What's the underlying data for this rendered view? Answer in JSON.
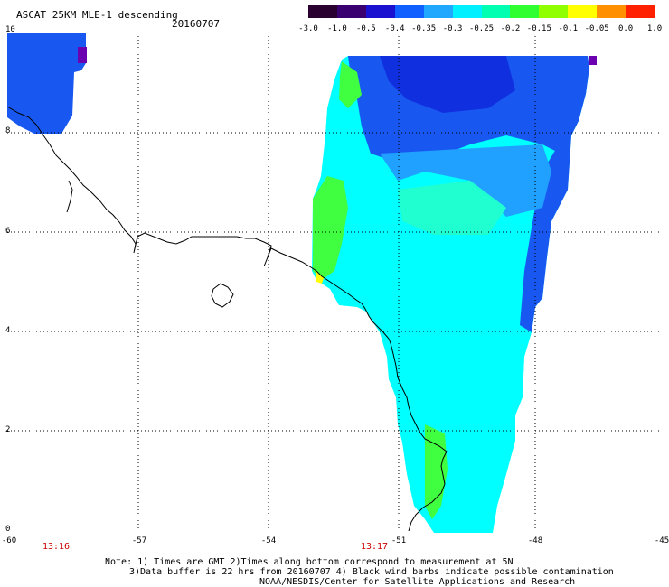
{
  "header": {
    "title": "ASCAT 25KM MLE-1 descending",
    "date": "20160707"
  },
  "colorbar": {
    "colors": [
      "#2a0030",
      "#3a0070",
      "#1a10d0",
      "#1060ff",
      "#20a8ff",
      "#00f0ff",
      "#00ffb0",
      "#30ff30",
      "#90ff00",
      "#ffff00",
      "#ff9000",
      "#ff2000"
    ],
    "labels": [
      "-3.0",
      "-1.0",
      "-0.5",
      "-0.4",
      "-0.35",
      "-0.3",
      "-0.25",
      "-0.2",
      "-0.15",
      "-0.1",
      "-0.05",
      "0.0",
      "1.0"
    ]
  },
  "axes": {
    "lat_labels": [
      "10",
      "8",
      "6",
      "4",
      "2",
      "0"
    ],
    "lon_labels": [
      "-60",
      "-57",
      "-54",
      "-51",
      "-48",
      "-45"
    ]
  },
  "times": [
    "13:16",
    "13:17"
  ],
  "notes": {
    "line1": "Note: 1) Times are GMT 2)Times along bottom correspond to measurement at 5N",
    "line2": "3)Data buffer is 22 hrs from 20160707 4) Black wind barbs indicate possible contamination",
    "credit": "NOAA/NESDIS/Center for Satellite Applications and Research"
  },
  "swath_colors": {
    "deep_blue": "#1030e0",
    "blue": "#1858f0",
    "mid_blue": "#20a0ff",
    "cyan": "#00ffff",
    "aqua": "#20ffd0",
    "green": "#40ff40",
    "yellow": "#ffff00",
    "purple": "#6a00b0"
  }
}
